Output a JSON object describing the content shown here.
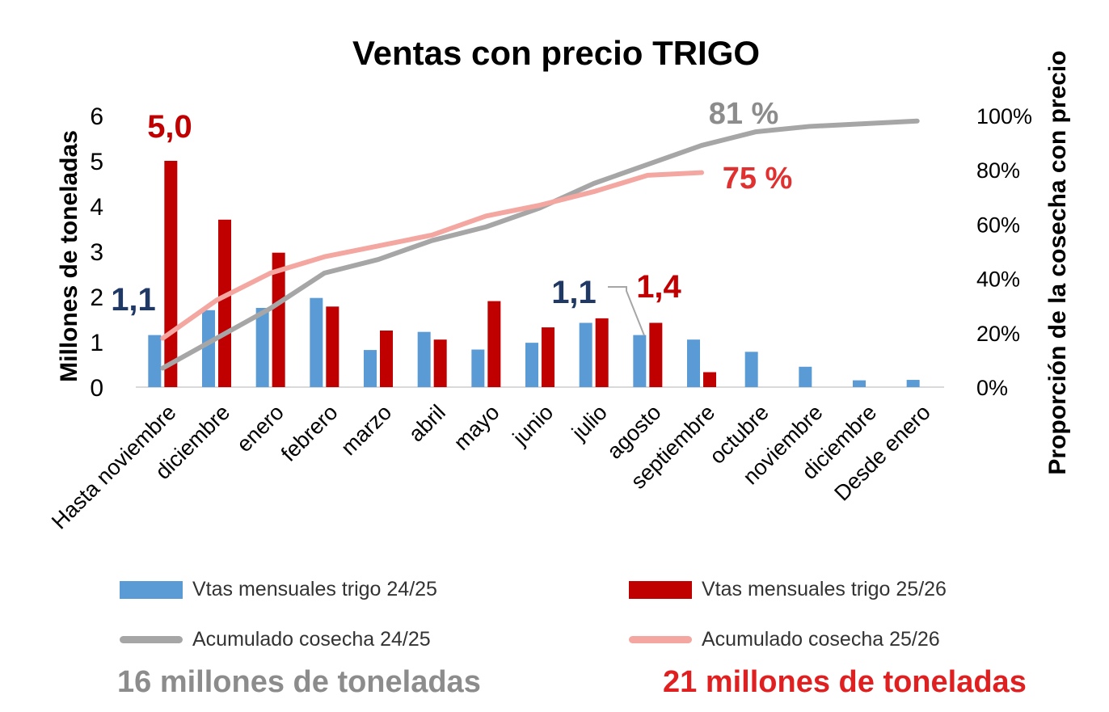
{
  "chart_data": {
    "type": "bar",
    "title": "Ventas con precio TRIGO",
    "ylabel": "Millones de toneladas",
    "y2label": "Proporción de la cosecha con precio",
    "ylim": [
      0,
      6
    ],
    "y2lim": [
      0,
      1
    ],
    "yticks": [
      "0",
      "1",
      "2",
      "3",
      "4",
      "5",
      "6"
    ],
    "y2ticks": [
      "0%",
      "20%",
      "40%",
      "60%",
      "80%",
      "100%"
    ],
    "categories": [
      "Hasta noviembre",
      "diciembre",
      "enero",
      "febrero",
      "marzo",
      "abril",
      "mayo",
      "junio",
      "julio",
      "agosto",
      "septiembre",
      "octubre",
      "noviembre",
      "diciembre",
      "Desde enero"
    ],
    "series": [
      {
        "name": "Vtas mensuales trigo 24/25",
        "kind": "bar",
        "color": "#5b9bd5",
        "values": [
          1.15,
          1.7,
          1.75,
          1.97,
          0.82,
          1.22,
          0.83,
          0.98,
          1.42,
          1.15,
          1.05,
          0.78,
          0.45,
          0.15,
          0.16
        ]
      },
      {
        "name": "Vtas mensuales trigo 25/26",
        "kind": "bar",
        "color": "#c00000",
        "values": [
          5.0,
          3.7,
          2.97,
          1.78,
          1.25,
          1.05,
          1.9,
          1.32,
          1.52,
          1.42,
          0.33,
          null,
          null,
          null,
          null
        ]
      },
      {
        "name": "Acumulado cosecha 24/25",
        "kind": "line",
        "axis": "right",
        "color": "#a6a6a6",
        "values": [
          0.07,
          0.18,
          0.29,
          0.42,
          0.47,
          0.54,
          0.59,
          0.66,
          0.75,
          0.82,
          0.89,
          0.94,
          0.96,
          0.97,
          0.98
        ]
      },
      {
        "name": "Acumulado cosecha 25/26",
        "kind": "line",
        "axis": "right",
        "color": "#f4a6a0",
        "values": [
          0.18,
          0.32,
          0.42,
          0.48,
          0.52,
          0.56,
          0.63,
          0.67,
          0.72,
          0.78,
          0.79,
          null,
          null,
          null,
          null
        ]
      }
    ],
    "annotations": [
      {
        "text": "5,0",
        "color": "#c00000"
      },
      {
        "text": "1,1",
        "color": "#1f3864"
      },
      {
        "text": "1,1",
        "color": "#1f3864"
      },
      {
        "text": "1,4",
        "color": "#c00000"
      },
      {
        "text": "81 %",
        "color": "#8c8c8c"
      },
      {
        "text": "75 %",
        "color": "#e03030"
      }
    ],
    "legend_position": "bottom"
  },
  "legend": [
    {
      "label": "Vtas mensuales trigo 24/25",
      "color": "#5b9bd5"
    },
    {
      "label": "Vtas mensuales trigo 25/26",
      "color": "#c00000"
    },
    {
      "label": "Acumulado cosecha 24/25",
      "color": "#a6a6a6"
    },
    {
      "label": "Acumulado cosecha 25/26",
      "color": "#f4a6a0"
    }
  ],
  "footer": {
    "left": "16 millones de toneladas",
    "left_color": "#8c8c8c",
    "right": "21 millones de toneladas",
    "right_color": "#e02020"
  }
}
